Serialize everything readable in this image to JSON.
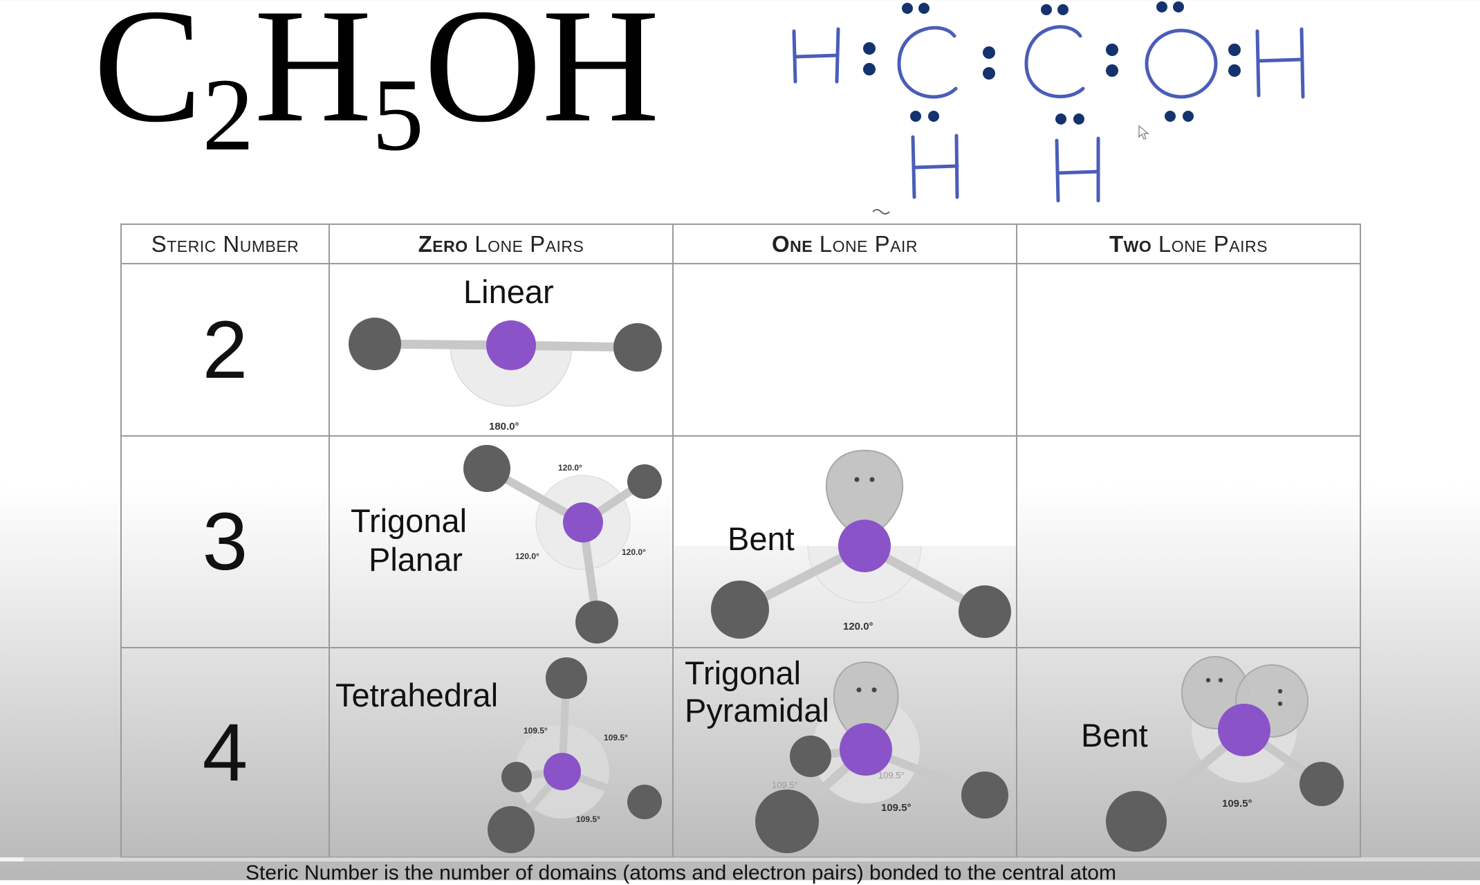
{
  "formula": {
    "c": "C",
    "sub1": "2",
    "h": "H",
    "sub2": "5",
    "tail": "OH"
  },
  "lewis": {
    "top_row": [
      "H",
      "C",
      "C",
      "O",
      "H"
    ],
    "bottom_row": [
      "H",
      "H"
    ],
    "electron_color": "#14336e",
    "ink_color": "#4a5db8"
  },
  "table": {
    "headers": {
      "steric": "Steric Number",
      "zero_lead": "Zero",
      "zero_rest": " Lone Pairs",
      "one_lead": "One",
      "one_rest": " Lone Pair",
      "two_lead": "Two",
      "two_rest": " Lone Pairs"
    },
    "rows": [
      {
        "steric": "2",
        "zero": {
          "shape": "Linear",
          "angle": "180.0°"
        }
      },
      {
        "steric": "3",
        "zero": {
          "shape_line1": "Trigonal",
          "shape_line2": "Planar",
          "angles": [
            "120.0°",
            "120.0°",
            "120.0°"
          ]
        },
        "one": {
          "shape": "Bent",
          "angle": "120.0°"
        }
      },
      {
        "steric": "4",
        "zero": {
          "shape": "Tetrahedral",
          "angles": [
            "109.5°",
            "109.5°",
            "109.5°"
          ]
        },
        "one": {
          "shape_line1": "Trigonal",
          "shape_line2": "Pyramidal",
          "angles": [
            "109.5°",
            "109.5°",
            "109.5°"
          ]
        },
        "two": {
          "shape": "Bent",
          "angle": "109.5°"
        }
      }
    ]
  },
  "caption": "Steric Number is the number of domains (atoms and electron pairs) bonded to the central atom",
  "colors": {
    "central_atom": "#8a54c8",
    "outer_atom": "#5f5f5f",
    "lone_pair": "#c4c4c4",
    "angle_disc": "#ececec"
  }
}
